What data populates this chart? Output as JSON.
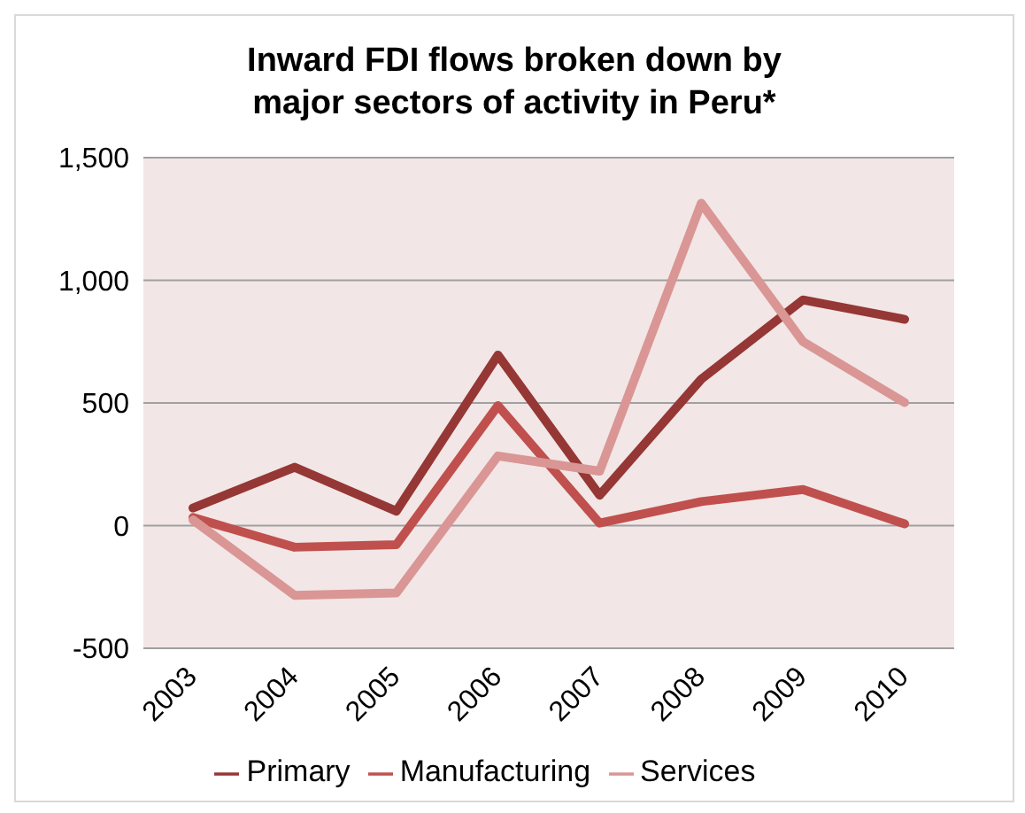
{
  "chart_data": {
    "type": "line",
    "title": "Inward FDI flows broken down by major sectors of activity in Peru*",
    "categories": [
      "2003",
      "2004",
      "2005",
      "2006",
      "2007",
      "2008",
      "2009",
      "2010"
    ],
    "series": [
      {
        "name": "Primary",
        "color": "#953735",
        "values": [
          72,
          238,
          59,
          695,
          124,
          597,
          920,
          841
        ]
      },
      {
        "name": "Manufacturing",
        "color": "#c0504d",
        "values": [
          33,
          -88,
          -78,
          489,
          10,
          98,
          147,
          7
        ]
      },
      {
        "name": "Services",
        "color": "#d99694",
        "values": [
          23,
          -284,
          -274,
          284,
          222,
          1314,
          750,
          502
        ]
      }
    ],
    "ylim": [
      -500,
      1500
    ],
    "yticks": [
      {
        "value": -500,
        "label": "-500"
      },
      {
        "value": 0,
        "label": "0"
      },
      {
        "value": 500,
        "label": "500"
      },
      {
        "value": 1000,
        "label": "1,000"
      },
      {
        "value": 1500,
        "label": "1,500"
      }
    ],
    "grid": "y",
    "legend": "bottom",
    "marker": "none",
    "line_style": "solid"
  }
}
